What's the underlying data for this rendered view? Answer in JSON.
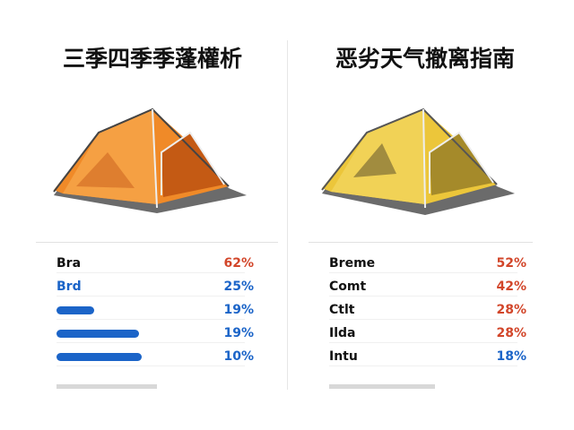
{
  "left": {
    "title": "三季四季季蓬權析",
    "rows": [
      {
        "label": "Bra",
        "value": "62%"
      },
      {
        "label": "Brd",
        "value": "25%"
      },
      {
        "value": "19%"
      },
      {
        "value": "19%"
      },
      {
        "value": "10%"
      }
    ]
  },
  "right": {
    "title": "恶劣天气撤离指南",
    "rows": [
      {
        "label": "Breme",
        "value": "52%"
      },
      {
        "label": "Comt",
        "value": "42%"
      },
      {
        "label": "Ctlt",
        "value": "28%"
      },
      {
        "label": "Ilda",
        "value": "28%"
      },
      {
        "label": "Intu",
        "value": "18%"
      }
    ]
  }
}
